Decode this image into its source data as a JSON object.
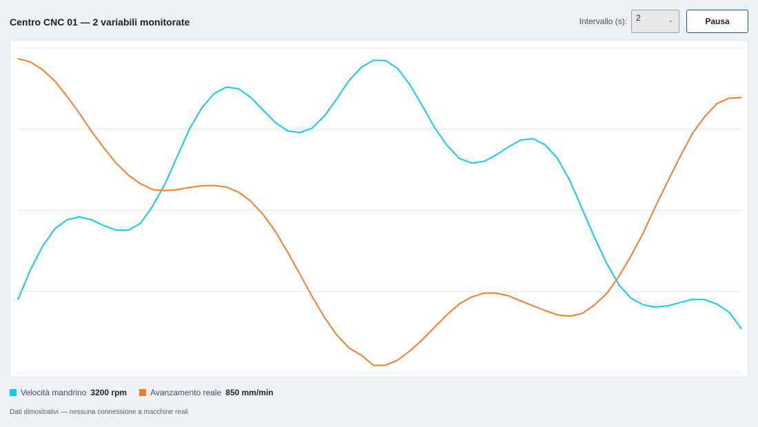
{
  "header": {
    "title": "Centro CNC 01 — 2 variabili monitorate",
    "interval_label": "Intervallo (s):",
    "interval_value": "2",
    "pause_label": "Pausa"
  },
  "chart_data": {
    "type": "line",
    "grid": true,
    "ylim": [
      0,
      100
    ],
    "x": [
      0,
      1,
      2,
      3,
      4,
      5,
      6,
      7,
      8,
      9,
      10,
      11,
      12,
      13,
      14,
      15,
      16,
      17,
      18,
      19,
      20,
      21,
      22,
      23,
      24,
      25,
      26,
      27,
      28,
      29,
      30,
      31,
      32,
      33,
      34,
      35,
      36,
      37,
      38,
      39,
      40,
      41,
      42,
      43,
      44,
      45,
      46,
      47,
      48,
      49,
      50,
      51,
      52,
      53,
      54,
      55,
      56,
      57,
      58,
      59
    ],
    "series": [
      {
        "name": "Velocità mandrino",
        "color": "#13c8ec",
        "values": [
          22.5,
          31.5,
          38.9,
          44.3,
          47.1,
          48.0,
          47.1,
          45.3,
          43.9,
          43.9,
          46.0,
          51.4,
          58.2,
          66.7,
          75.2,
          81.6,
          86.0,
          88.0,
          87.5,
          84.8,
          80.9,
          77.1,
          74.5,
          74.0,
          75.4,
          79.1,
          84.4,
          90.0,
          94.1,
          96.3,
          96.2,
          93.6,
          88.5,
          82.1,
          75.4,
          70.0,
          66.0,
          64.6,
          65.1,
          67.1,
          69.6,
          71.7,
          72.1,
          70.2,
          66.0,
          59.3,
          50.6,
          41.8,
          33.8,
          27.1,
          22.9,
          20.9,
          20.2,
          20.6,
          21.6,
          22.6,
          22.5,
          21.1,
          18.6,
          13.5
        ]
      },
      {
        "name": "Avanzamento reale",
        "color": "#f37c2b",
        "values": [
          96.8,
          95.8,
          93.4,
          89.9,
          85.2,
          80.0,
          74.4,
          69.3,
          64.6,
          60.9,
          58.2,
          56.4,
          56.1,
          56.4,
          57.1,
          57.6,
          57.7,
          57.2,
          55.6,
          52.8,
          48.7,
          43.5,
          37.1,
          30.3,
          23.4,
          17.0,
          11.6,
          7.6,
          5.4,
          2.2,
          2.3,
          3.9,
          6.8,
          10.2,
          14.1,
          17.9,
          21.2,
          23.3,
          24.5,
          24.5,
          23.7,
          22.1,
          20.6,
          19.1,
          17.8,
          17.4,
          18.2,
          20.8,
          24.3,
          29.6,
          36.0,
          43.1,
          51.3,
          59.0,
          66.6,
          73.7,
          78.9,
          82.9,
          84.6,
          84.8
        ]
      }
    ]
  },
  "legend": {
    "items": [
      {
        "name": "Velocità mandrino",
        "value": "3200 rpm",
        "color": "#13c8ec"
      },
      {
        "name": "Avanzamento reale",
        "value": "850 mm/min",
        "color": "#f37c2b"
      }
    ]
  },
  "footnote": "Dati dimostrativi — nessuna connessione a macchine reali"
}
